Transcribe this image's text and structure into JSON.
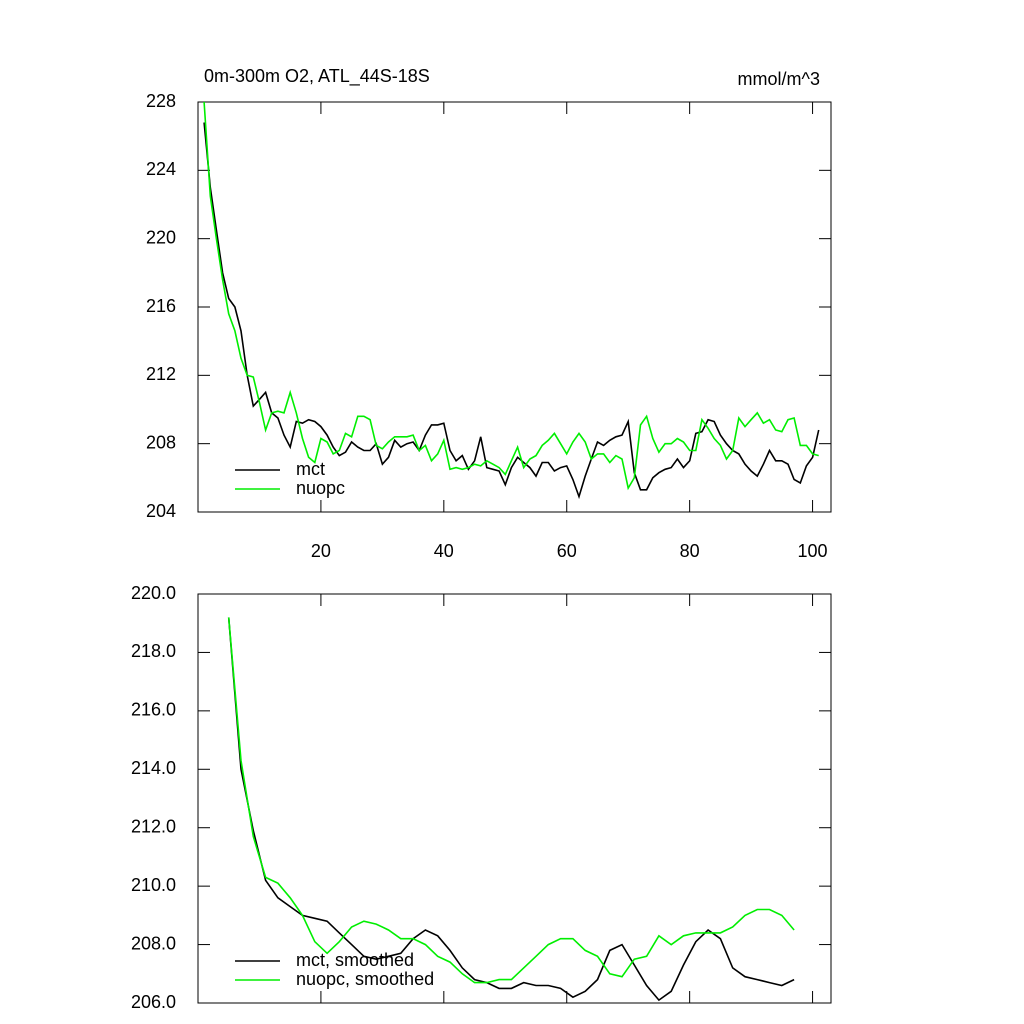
{
  "chart_data": [
    {
      "type": "line",
      "title": "0m-300m O2, ATL_44S-18S",
      "units": "mmol/m^3",
      "x": [
        1,
        2,
        3,
        4,
        5,
        6,
        7,
        8,
        9,
        10,
        11,
        12,
        13,
        14,
        15,
        16,
        17,
        18,
        19,
        20,
        21,
        22,
        23,
        24,
        25,
        26,
        27,
        28,
        29,
        30,
        31,
        32,
        33,
        34,
        35,
        36,
        37,
        38,
        39,
        40,
        41,
        42,
        43,
        44,
        45,
        46,
        47,
        48,
        49,
        50,
        51,
        52,
        53,
        54,
        55,
        56,
        57,
        58,
        59,
        60,
        61,
        62,
        63,
        64,
        65,
        66,
        67,
        68,
        69,
        70,
        71,
        72,
        73,
        74,
        75,
        76,
        77,
        78,
        79,
        80,
        81,
        82,
        83,
        84,
        85,
        86,
        87,
        88,
        89,
        90,
        91,
        92,
        93,
        94,
        95,
        96,
        97,
        98,
        99,
        100,
        101
      ],
      "series": [
        {
          "name": "mct",
          "color": "#000000",
          "values": [
            226.8,
            223,
            220.5,
            218,
            216.5,
            216,
            214.6,
            212,
            210.2,
            210.6,
            211,
            209.8,
            209.5,
            208.5,
            207.8,
            209.3,
            209.2,
            209.4,
            209.3,
            209,
            208.5,
            207.8,
            207.3,
            207.5,
            208.1,
            207.8,
            207.6,
            207.6,
            208,
            206.8,
            207.2,
            208.2,
            207.8,
            208,
            208.1,
            207.6,
            208.5,
            209.1,
            209.1,
            209.2,
            207.6,
            207,
            207.3,
            206.5,
            207,
            208.4,
            206.6,
            206.5,
            206.4,
            205.6,
            206.6,
            207.2,
            206.9,
            206.6,
            206.1,
            206.9,
            206.9,
            206.4,
            206.6,
            206.7,
            205.9,
            204.9,
            206.1,
            207.1,
            208.1,
            207.9,
            208.2,
            208.4,
            208.5,
            209.3,
            206.3,
            205.3,
            205.3,
            206,
            206.3,
            206.5,
            206.6,
            207.1,
            206.6,
            207,
            208.6,
            208.7,
            209.4,
            209.3,
            208.5,
            208,
            207.6,
            207.4,
            206.8,
            206.4,
            206.1,
            206.8,
            207.6,
            207,
            207,
            206.8,
            205.9,
            205.7,
            206.7,
            207.2,
            208.8
          ]
        },
        {
          "name": "nuopc",
          "color": "#00ee00",
          "values": [
            228,
            222.5,
            220,
            217.6,
            215.6,
            214.6,
            213,
            212,
            211.9,
            210.4,
            208.8,
            209.8,
            209.9,
            209.8,
            211,
            209.8,
            208.3,
            207.2,
            206.9,
            208.3,
            208.1,
            207.4,
            207.6,
            208.6,
            208.4,
            209.6,
            209.6,
            209.4,
            207.9,
            207.7,
            208.1,
            208.4,
            208.4,
            208.4,
            208.5,
            207.6,
            207.9,
            207,
            207.4,
            208.2,
            206.5,
            206.6,
            206.5,
            206.6,
            206.8,
            206.7,
            207,
            206.8,
            206.6,
            206.2,
            207,
            207.8,
            206.6,
            207.1,
            207.3,
            207.9,
            208.2,
            208.6,
            208,
            207.4,
            208.1,
            208.6,
            208.1,
            207.1,
            207.4,
            207.4,
            206.9,
            207.3,
            207.1,
            205.4,
            206,
            209.1,
            209.6,
            208.3,
            207.5,
            208,
            208,
            208.3,
            208.1,
            207.6,
            207.6,
            209.4,
            208.9,
            208.3,
            207.9,
            207.1,
            207.6,
            209.5,
            209,
            209.4,
            209.8,
            209.2,
            209.4,
            208.8,
            208.7,
            209.4,
            209.5,
            207.9,
            207.9,
            207.4,
            207.3
          ]
        }
      ],
      "xlim": [
        0,
        103
      ],
      "xticks": [
        20,
        40,
        60,
        80,
        100
      ],
      "ylim": [
        204,
        228
      ],
      "yticks": [
        204,
        208,
        212,
        216,
        220,
        224,
        228
      ],
      "legend": "lower left"
    },
    {
      "type": "line",
      "x": [
        5,
        7,
        9,
        11,
        13,
        15,
        17,
        19,
        21,
        23,
        25,
        27,
        29,
        31,
        33,
        35,
        37,
        39,
        41,
        43,
        45,
        47,
        49,
        51,
        53,
        55,
        57,
        59,
        61,
        63,
        65,
        67,
        69,
        71,
        73,
        75,
        77,
        79,
        81,
        83,
        85,
        87,
        89,
        91,
        93,
        95,
        97
      ],
      "series": [
        {
          "name": "mct, smoothed",
          "color": "#000000",
          "values": [
            219.2,
            214.0,
            211.9,
            210.2,
            209.6,
            209.3,
            209.0,
            208.9,
            208.8,
            208.4,
            208.0,
            207.6,
            207.5,
            207.6,
            207.7,
            208.2,
            208.5,
            208.3,
            207.8,
            207.2,
            206.8,
            206.7,
            206.5,
            206.5,
            206.7,
            206.6,
            206.6,
            206.5,
            206.2,
            206.4,
            206.8,
            207.8,
            208.0,
            207.3,
            206.6,
            206.1,
            206.4,
            207.3,
            208.1,
            208.5,
            208.2,
            207.2,
            206.9,
            206.8,
            206.7,
            206.6,
            206.8
          ]
        },
        {
          "name": "nuopc, smoothed",
          "color": "#00ee00",
          "values": [
            219.2,
            214.3,
            211.7,
            210.3,
            210.1,
            209.6,
            209.0,
            208.1,
            207.7,
            208.1,
            208.6,
            208.8,
            208.7,
            208.5,
            208.2,
            208.2,
            208.0,
            207.6,
            207.4,
            207.0,
            206.7,
            206.7,
            206.8,
            206.8,
            207.2,
            207.6,
            208.0,
            208.2,
            208.2,
            207.8,
            207.6,
            207.0,
            206.9,
            207.5,
            207.6,
            208.3,
            208.0,
            208.3,
            208.4,
            208.4,
            208.4,
            208.6,
            209.0,
            209.2,
            209.2,
            209.0,
            208.5
          ]
        }
      ],
      "xlim": [
        0,
        103
      ],
      "xticks": [
        20,
        40,
        60,
        80,
        100
      ],
      "ylim": [
        206,
        220
      ],
      "yticks": [
        {
          "value": 206,
          "label": "206.0"
        },
        {
          "value": 208,
          "label": "208.0"
        },
        {
          "value": 210,
          "label": "210.0"
        },
        {
          "value": 212,
          "label": "212.0"
        },
        {
          "value": 214,
          "label": "214.0"
        },
        {
          "value": 216,
          "label": "216.0"
        },
        {
          "value": 218,
          "label": "218.0"
        },
        {
          "value": 220,
          "label": "220.0"
        }
      ],
      "legend": "lower left"
    }
  ]
}
